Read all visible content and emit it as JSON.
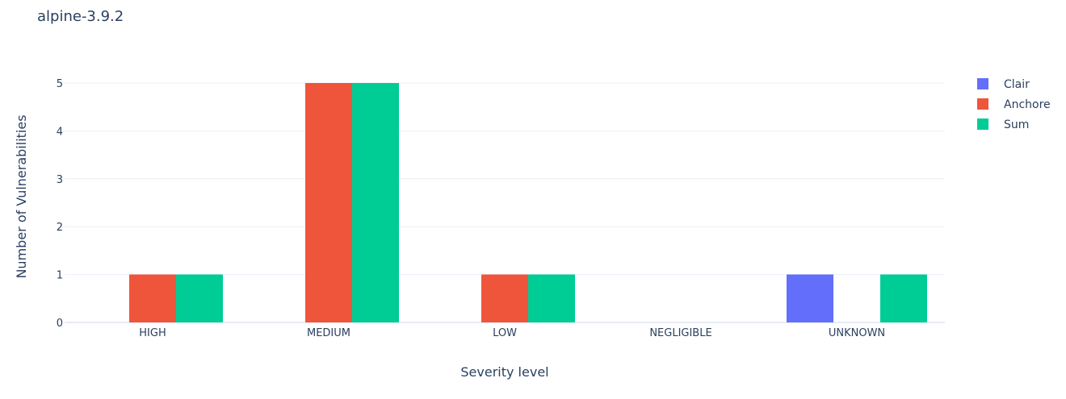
{
  "chart_data": {
    "type": "bar",
    "title": "alpine-3.9.2",
    "xlabel": "Severity level",
    "ylabel": "Number of Vulnerabilities",
    "categories": [
      "HIGH",
      "MEDIUM",
      "LOW",
      "NEGLIGIBLE",
      "UNKNOWN"
    ],
    "series": [
      {
        "name": "Clair",
        "color": "#636efa",
        "values": [
          0,
          0,
          0,
          0,
          1
        ]
      },
      {
        "name": "Anchore",
        "color": "#ef553b",
        "values": [
          1,
          5,
          1,
          0,
          0
        ]
      },
      {
        "name": "Sum",
        "color": "#00cc96",
        "values": [
          1,
          5,
          1,
          0,
          1
        ]
      }
    ],
    "ylim": [
      0,
      5.2
    ],
    "yticks": [
      0,
      1,
      2,
      3,
      4,
      5
    ],
    "grid": true,
    "legend": "right"
  }
}
